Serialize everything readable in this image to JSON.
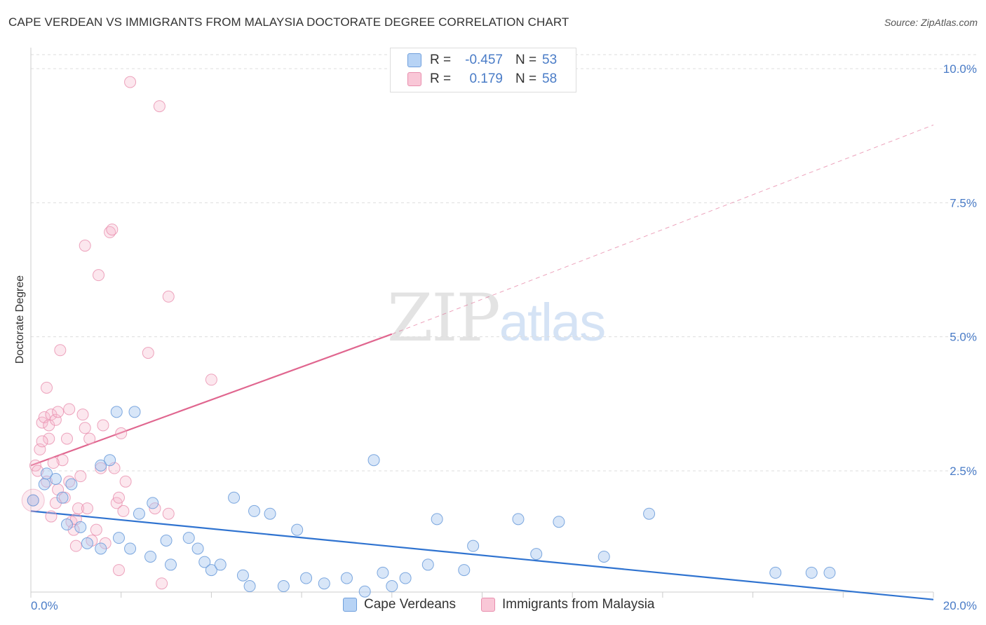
{
  "title": "CAPE VERDEAN VS IMMIGRANTS FROM MALAYSIA DOCTORATE DEGREE CORRELATION CHART",
  "source": "Source: ZipAtlas.com",
  "watermark": {
    "part1": "ZIP",
    "part2": "atlas"
  },
  "legend": {
    "series1": {
      "r_label": "R =",
      "r_value": "-0.457",
      "n_label": "N =",
      "n_value": "53"
    },
    "series2": {
      "r_label": "R =",
      "r_value": "0.179",
      "n_label": "N =",
      "n_value": "58"
    }
  },
  "bottom_legend": {
    "series1": "Cape Verdeans",
    "series2": "Immigrants from Malaysia"
  },
  "colors": {
    "blue_fill": "#a9c8f0",
    "blue_stroke": "#6f9fdc",
    "blue_line": "#2f73d0",
    "pink_fill": "#f6b9cd",
    "pink_stroke": "#e88fae",
    "pink_line": "#e0668f",
    "tick": "#4a7cc7",
    "grid": "#dddddd"
  },
  "chart_data": {
    "type": "scatter",
    "title": "CAPE VERDEAN VS IMMIGRANTS FROM MALAYSIA DOCTORATE DEGREE CORRELATION CHART",
    "xlabel": "",
    "ylabel": "Doctorate Degree",
    "xlim": [
      0,
      20
    ],
    "ylim": [
      0,
      10.5
    ],
    "x_ticks": [
      "0.0%",
      "20.0%"
    ],
    "y_ticks": [
      {
        "value": 2.5,
        "label": "2.5%"
      },
      {
        "value": 5.0,
        "label": "5.0%"
      },
      {
        "value": 7.5,
        "label": "7.5%"
      },
      {
        "value": 10.0,
        "label": "10.0%"
      }
    ],
    "series": [
      {
        "name": "Cape Verdeans",
        "color": "blue",
        "points": [
          [
            0.05,
            1.95
          ],
          [
            0.3,
            2.25
          ],
          [
            0.35,
            2.45
          ],
          [
            0.55,
            2.35
          ],
          [
            0.7,
            2.0
          ],
          [
            0.9,
            2.25
          ],
          [
            0.8,
            1.5
          ],
          [
            1.1,
            1.45
          ],
          [
            1.25,
            1.15
          ],
          [
            1.55,
            2.6
          ],
          [
            1.75,
            2.7
          ],
          [
            1.9,
            3.6
          ],
          [
            2.3,
            3.6
          ],
          [
            1.55,
            1.05
          ],
          [
            1.95,
            1.25
          ],
          [
            2.2,
            1.05
          ],
          [
            2.4,
            1.7
          ],
          [
            2.7,
            1.9
          ],
          [
            2.65,
            0.9
          ],
          [
            3.0,
            1.2
          ],
          [
            3.1,
            0.75
          ],
          [
            3.5,
            1.25
          ],
          [
            3.7,
            1.05
          ],
          [
            3.85,
            0.8
          ],
          [
            4.0,
            0.65
          ],
          [
            4.2,
            0.75
          ],
          [
            4.5,
            2.0
          ],
          [
            4.7,
            0.55
          ],
          [
            4.95,
            1.75
          ],
          [
            4.85,
            0.35
          ],
          [
            5.3,
            1.7
          ],
          [
            5.6,
            0.35
          ],
          [
            5.9,
            1.4
          ],
          [
            6.1,
            0.5
          ],
          [
            6.5,
            0.4
          ],
          [
            7.0,
            0.5
          ],
          [
            7.4,
            0.25
          ],
          [
            7.6,
            2.7
          ],
          [
            7.8,
            0.6
          ],
          [
            8.0,
            0.35
          ],
          [
            8.3,
            0.5
          ],
          [
            8.8,
            0.75
          ],
          [
            9.0,
            1.6
          ],
          [
            9.6,
            0.65
          ],
          [
            9.8,
            1.1
          ],
          [
            10.8,
            1.6
          ],
          [
            11.2,
            0.95
          ],
          [
            11.7,
            1.55
          ],
          [
            12.7,
            0.9
          ],
          [
            13.7,
            1.7
          ],
          [
            16.5,
            0.6
          ],
          [
            17.3,
            0.6
          ],
          [
            17.7,
            0.6
          ]
        ]
      },
      {
        "name": "Immigrants from Malaysia",
        "color": "pink",
        "points": [
          [
            0.05,
            1.95
          ],
          [
            0.1,
            2.6
          ],
          [
            0.15,
            2.5
          ],
          [
            0.2,
            2.9
          ],
          [
            0.25,
            3.4
          ],
          [
            0.3,
            3.5
          ],
          [
            0.35,
            4.05
          ],
          [
            0.4,
            3.35
          ],
          [
            0.45,
            3.55
          ],
          [
            0.55,
            3.45
          ],
          [
            0.6,
            3.6
          ],
          [
            0.4,
            3.1
          ],
          [
            0.45,
            1.65
          ],
          [
            0.55,
            1.9
          ],
          [
            0.6,
            2.15
          ],
          [
            0.7,
            2.7
          ],
          [
            0.75,
            2.0
          ],
          [
            0.8,
            3.1
          ],
          [
            0.85,
            3.65
          ],
          [
            0.9,
            1.55
          ],
          [
            0.95,
            1.4
          ],
          [
            1.0,
            1.1
          ],
          [
            1.05,
            1.8
          ],
          [
            1.1,
            2.4
          ],
          [
            1.15,
            3.55
          ],
          [
            1.2,
            6.7
          ],
          [
            1.25,
            1.8
          ],
          [
            1.3,
            3.1
          ],
          [
            1.35,
            1.2
          ],
          [
            1.45,
            1.4
          ],
          [
            1.5,
            6.15
          ],
          [
            1.55,
            2.55
          ],
          [
            1.6,
            3.35
          ],
          [
            1.65,
            1.15
          ],
          [
            1.75,
            6.95
          ],
          [
            1.8,
            7.0
          ],
          [
            1.85,
            2.55
          ],
          [
            1.9,
            1.9
          ],
          [
            1.95,
            2.0
          ],
          [
            2.0,
            3.2
          ],
          [
            2.05,
            1.75
          ],
          [
            2.1,
            2.3
          ],
          [
            1.95,
            0.65
          ],
          [
            2.2,
            9.75
          ],
          [
            2.6,
            4.7
          ],
          [
            2.75,
            1.8
          ],
          [
            2.85,
            9.3
          ],
          [
            2.9,
            0.4
          ],
          [
            3.05,
            1.7
          ],
          [
            3.05,
            5.75
          ],
          [
            4.0,
            4.2
          ],
          [
            0.5,
            2.65
          ],
          [
            0.65,
            4.75
          ],
          [
            0.35,
            2.3
          ],
          [
            1.0,
            1.6
          ],
          [
            0.25,
            3.05
          ],
          [
            0.85,
            2.3
          ],
          [
            1.2,
            3.3
          ]
        ]
      }
    ],
    "trend_lines": [
      {
        "series": "Cape Verdeans",
        "x0": 0,
        "y0": 1.75,
        "x1": 20,
        "y1": 0.1,
        "dashed_extension": false
      },
      {
        "series": "Immigrants from Malaysia",
        "x0": 0,
        "y0": 2.6,
        "x1": 8,
        "y1": 5.05,
        "extend_to": 20,
        "extend_y": 8.95
      }
    ]
  }
}
